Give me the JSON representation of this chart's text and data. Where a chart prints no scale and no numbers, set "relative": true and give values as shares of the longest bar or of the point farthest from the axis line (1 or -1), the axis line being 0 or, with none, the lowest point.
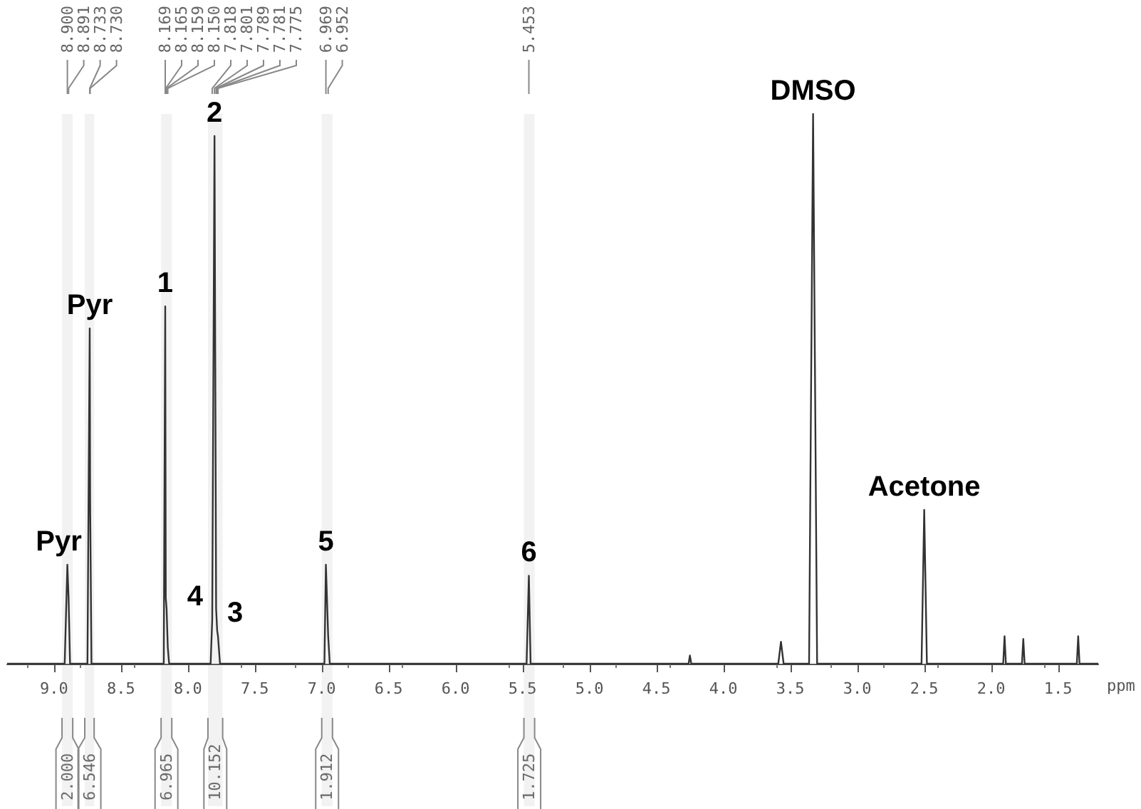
{
  "chart_data": {
    "type": "line",
    "relative": true,
    "xlabel": "ppm",
    "xlim": [
      9.35,
      1.2
    ],
    "xticks": [
      {
        "value": 9,
        "label": "9.0"
      },
      8.5,
      {
        "value": 8,
        "label": "8.0"
      },
      7.5,
      {
        "value": 7,
        "label": "7.0"
      },
      6.5,
      {
        "value": 6,
        "label": "6.0"
      },
      5.5,
      {
        "value": 5,
        "label": "5.0"
      },
      4.5,
      {
        "value": 4,
        "label": "4.0"
      },
      3.5,
      {
        "value": 3,
        "label": "3.0"
      },
      2.5,
      {
        "value": 2,
        "label": "2.0"
      },
      1.5
    ],
    "tick_labels": "x",
    "marker": "none",
    "line_style": "solid",
    "series": [
      {
        "color": "#333333",
        "x": [
          9.35,
          8.92,
          8.9,
          8.891,
          8.88,
          8.75,
          8.733,
          8.73,
          8.72,
          8.18,
          8.169,
          8.165,
          8.159,
          8.15,
          8.14,
          7.83,
          7.818,
          7.801,
          7.789,
          7.781,
          7.775,
          7.76,
          6.98,
          6.969,
          6.952,
          6.94,
          5.47,
          5.453,
          5.44,
          4.26,
          4.25,
          4.24,
          3.59,
          3.57,
          3.55,
          3.36,
          3.33,
          3.3,
          2.52,
          2.5,
          2.48,
          1.91,
          1.9,
          1.89,
          1.77,
          1.76,
          1.75,
          1.36,
          1.35,
          1.34,
          1.2
        ],
        "values": [
          0,
          0,
          0.18,
          0.12,
          0,
          0,
          0.61,
          0.3,
          0,
          0,
          0.65,
          0.12,
          0.1,
          0.03,
          0,
          0,
          0.08,
          0.96,
          0.1,
          0.06,
          0.05,
          0,
          0,
          0.18,
          0.05,
          0,
          0,
          0.16,
          0,
          0,
          0.015,
          0,
          0,
          0.04,
          0,
          0,
          1,
          0,
          0,
          0.28,
          0,
          0,
          0.05,
          0,
          0,
          0.045,
          0,
          0,
          0.05,
          0,
          0
        ]
      }
    ],
    "annotations": [
      {
        "text": "Pyr",
        "x": 8.9,
        "y": 0.18
      },
      {
        "text": "Pyr",
        "x": 8.733,
        "y": 0.61
      },
      {
        "text": "1",
        "x": 8.169,
        "y": 0.65
      },
      {
        "text": "2",
        "x": 7.801,
        "y": 0.96
      },
      {
        "text": "4",
        "x": 7.818,
        "y": 0.08
      },
      {
        "text": "3",
        "x": 7.775,
        "y": 0.05
      },
      {
        "text": "5",
        "x": 6.969,
        "y": 0.18
      },
      {
        "text": "6",
        "x": 5.453,
        "y": 0.16
      },
      {
        "text": "DMSO",
        "x": 3.33,
        "y": 1
      },
      {
        "text": "Acetone",
        "x": 2.5,
        "y": 0.28
      },
      {
        "text": "8.900",
        "x": 8.9
      },
      {
        "text": "8.891",
        "x": 8.891
      },
      {
        "text": "8.733",
        "x": 8.733
      },
      {
        "text": "8.730",
        "x": 8.73
      },
      {
        "text": "8.169",
        "x": 8.169
      },
      {
        "text": "8.165",
        "x": 8.165
      },
      {
        "text": "8.159",
        "x": 8.159
      },
      {
        "text": "8.150",
        "x": 8.15
      },
      {
        "text": "7.818",
        "x": 7.818
      },
      {
        "text": "7.801",
        "x": 7.801
      },
      {
        "text": "7.789",
        "x": 7.789
      },
      {
        "text": "7.781",
        "x": 7.781
      },
      {
        "text": "7.775",
        "x": 7.775
      },
      {
        "text": "6.969",
        "x": 6.969
      },
      {
        "text": "6.952",
        "x": 6.952
      },
      {
        "text": "5.453",
        "x": 5.453
      }
    ],
    "bands": [
      {
        "axis": "x",
        "from": 8.94,
        "to": 8.86,
        "label": "2.000"
      },
      {
        "axis": "x",
        "from": 8.77,
        "to": 8.7,
        "label": "6.546"
      },
      {
        "axis": "x",
        "from": 8.2,
        "to": 8.12,
        "label": "6.965"
      },
      {
        "axis": "x",
        "from": 7.85,
        "to": 7.74,
        "label": "10.152"
      },
      {
        "axis": "x",
        "from": 7.0,
        "to": 6.92,
        "label": "1.912"
      },
      {
        "axis": "x",
        "from": 5.49,
        "to": 5.41,
        "label": "1.725"
      }
    ]
  }
}
